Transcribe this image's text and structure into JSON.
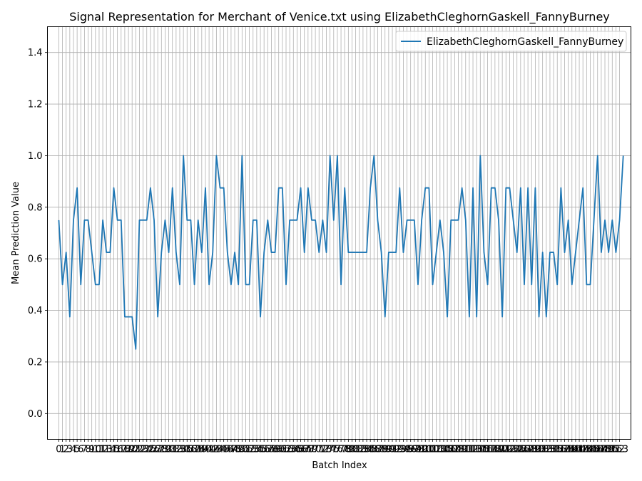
{
  "chart_data": {
    "type": "line",
    "title": "Signal Representation for Merchant of Venice.txt using ElizabethCleghornGaskell_FannyBurney",
    "xlabel": "Batch Index",
    "ylabel": "Mean Prediction Value",
    "xlim": [
      -3.1,
      156.1
    ],
    "ylim": [
      -0.1,
      1.5
    ],
    "yticks": [
      0.0,
      0.2,
      0.4,
      0.6,
      0.8,
      1.0,
      1.2,
      1.4
    ],
    "xticks_start": 0,
    "xticks_end": 153,
    "grid": true,
    "legend_position": "top-right",
    "series": [
      {
        "name": "ElizabethCleghornGaskell_FannyBurney",
        "color": "#1f77b4",
        "x_start": 0,
        "values": [
          0.75,
          0.5,
          0.625,
          0.375,
          0.75,
          0.875,
          0.5,
          0.75,
          0.75,
          0.625,
          0.5,
          0.5,
          0.75,
          0.625,
          0.625,
          0.875,
          0.75,
          0.75,
          0.375,
          0.375,
          0.375,
          0.25,
          0.75,
          0.75,
          0.75,
          0.875,
          0.75,
          0.375,
          0.625,
          0.75,
          0.625,
          0.875,
          0.625,
          0.5,
          1.0,
          0.75,
          0.75,
          0.5,
          0.75,
          0.625,
          0.875,
          0.5,
          0.625,
          1.0,
          0.875,
          0.875,
          0.625,
          0.5,
          0.625,
          0.5,
          1.0,
          0.5,
          0.5,
          0.75,
          0.75,
          0.375,
          0.625,
          0.75,
          0.625,
          0.625,
          0.875,
          0.875,
          0.5,
          0.75,
          0.75,
          0.75,
          0.875,
          0.625,
          0.875,
          0.75,
          0.75,
          0.625,
          0.75,
          0.625,
          1.0,
          0.75,
          1.0,
          0.5,
          0.875,
          0.625,
          0.625,
          0.625,
          0.625,
          0.625,
          0.625,
          0.875,
          1.0,
          0.75,
          0.625,
          0.375,
          0.625,
          0.625,
          0.625,
          0.875,
          0.625,
          0.75,
          0.75,
          0.75,
          0.5,
          0.75,
          0.875,
          0.875,
          0.5,
          0.625,
          0.75,
          0.625,
          0.375,
          0.75,
          0.75,
          0.75,
          0.875,
          0.75,
          0.375,
          0.875,
          0.375,
          1.0,
          0.625,
          0.5,
          0.875,
          0.875,
          0.75,
          0.375,
          0.875,
          0.875,
          0.75,
          0.625,
          0.875,
          0.5,
          0.875,
          0.5,
          0.875,
          0.375,
          0.625,
          0.375,
          0.625,
          0.625,
          0.5,
          0.875,
          0.625,
          0.75,
          0.5,
          0.625,
          0.75,
          0.875,
          0.5,
          0.5,
          0.75,
          1.0,
          0.625,
          0.75,
          0.625,
          0.75,
          0.625,
          0.75,
          1.0
        ]
      }
    ]
  }
}
